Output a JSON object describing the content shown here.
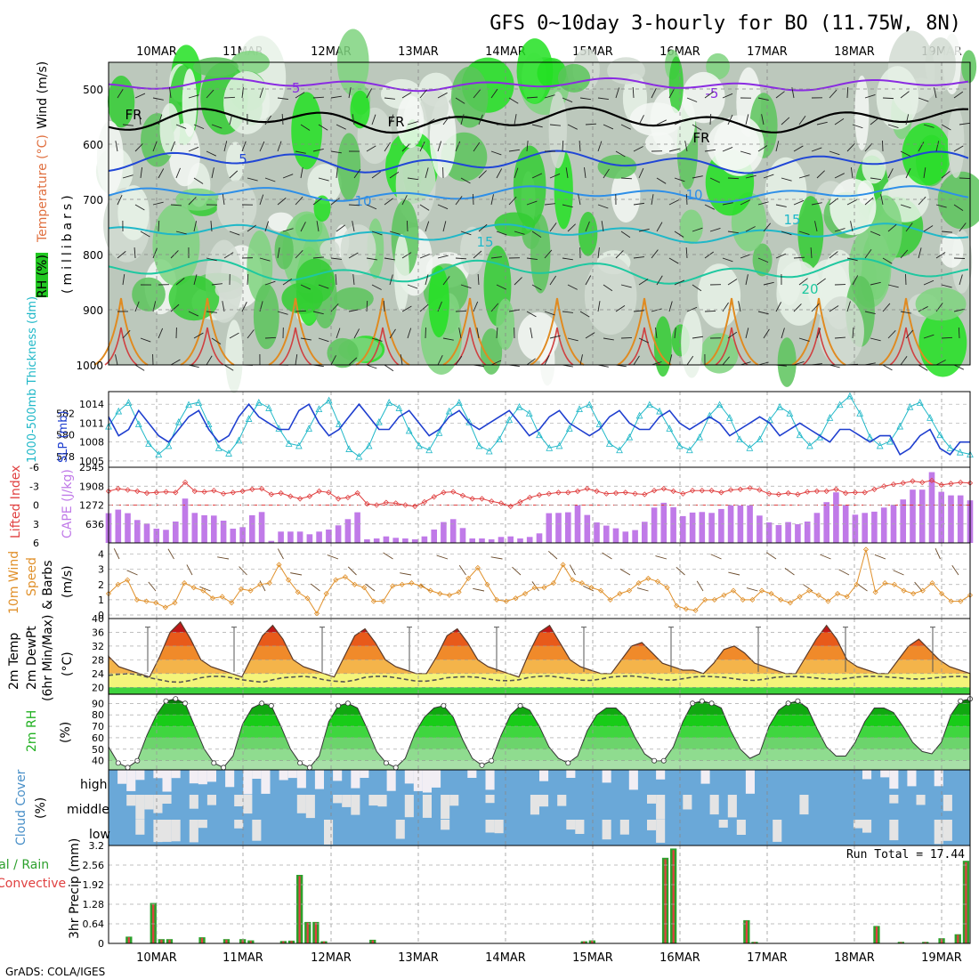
{
  "title": "GFS 0~10day 3-hourly for BO (11.75W, 8N)",
  "credit": "GrADS: COLA/IGES",
  "run_total_label": "Run Total = 17.44",
  "dates": [
    "10MAR",
    "11MAR",
    "12MAR",
    "13MAR",
    "14MAR",
    "15MAR",
    "16MAR",
    "17MAR",
    "18MAR",
    "19MAR"
  ],
  "panels": {
    "upper": {
      "ylabels": {
        "rh": "RH (%)",
        "temp": "Temperature (°C)",
        "wind": "Wind (m/s)",
        "units": "(millibars)"
      },
      "yticks": [
        "500",
        "600",
        "700",
        "800",
        "900",
        "1000"
      ],
      "contour_labels": [
        "-5",
        "FR",
        "5",
        "10",
        "15",
        "20"
      ]
    },
    "slp": {
      "ylabel_left": "1000-500mb Thickness (dm)",
      "ylabel_right": "SLP (mb)",
      "yticks_left": [
        "582",
        "580",
        "578"
      ],
      "yticks_right": [
        "1014",
        "1011",
        "1008",
        "1005"
      ]
    },
    "cape": {
      "ylabel_left": "Lifted Index",
      "ylabel_right": "CAPE (J/kg)",
      "yticks_left": [
        "-6",
        "-3",
        "0",
        "3",
        "6"
      ],
      "yticks_right": [
        "2545",
        "1908",
        "1272",
        "636"
      ]
    },
    "wind": {
      "ylabel_a": "10m Wind",
      "ylabel_b": "Speed",
      "ylabel_c": "& Barbs",
      "units": "(m/s)",
      "yticks": [
        "4",
        "3",
        "2",
        "1",
        "0"
      ]
    },
    "temp": {
      "ylabel_a": "2m Temp",
      "ylabel_b": "2m DewPt",
      "ylabel_c": "(6hr Min/Max)",
      "units": "(°C)",
      "yticks": [
        "40",
        "36",
        "32",
        "28",
        "24",
        "20"
      ]
    },
    "rh": {
      "ylabel": "2m RH",
      "units": "(%)",
      "yticks": [
        "90",
        "80",
        "70",
        "60",
        "50",
        "40"
      ]
    },
    "cloud": {
      "ylabel": "Cloud Cover",
      "units": "(%)",
      "levels": [
        "high",
        "middle",
        "low"
      ]
    },
    "precip": {
      "ylabel": "3hr Precip (mm)",
      "legend_total": "Total / Rain",
      "legend_conv": "Convective",
      "yticks": [
        "3.2",
        "2.56",
        "1.92",
        "1.28",
        "0.64",
        "0"
      ]
    }
  },
  "chart_data": [
    {
      "type": "line",
      "title": "1000-500mb Thickness / SLP",
      "series": [
        {
          "name": "SLP (mb)",
          "color": "#1f3fcf",
          "values": [
            1012,
            1009,
            1010,
            1013,
            1011,
            1009,
            1008,
            1010,
            1012,
            1013,
            1010,
            1008,
            1009,
            1012,
            1014,
            1012,
            1011,
            1010,
            1010,
            1013,
            1014,
            1011,
            1009,
            1010,
            1012,
            1014,
            1012,
            1010,
            1010,
            1012,
            1013,
            1011,
            1009,
            1010,
            1012,
            1013,
            1011,
            1010,
            1011,
            1012,
            1013,
            1011,
            1009,
            1010,
            1012,
            1013,
            1011,
            1010,
            1009,
            1010,
            1012,
            1013,
            1011,
            1010,
            1010,
            1012,
            1013,
            1011,
            1010,
            1011,
            1012,
            1011,
            1009,
            1010,
            1011,
            1012,
            1011,
            1009,
            1010,
            1011,
            1010,
            1009,
            1008,
            1010,
            1010,
            1009,
            1008,
            1009,
            1009,
            1006,
            1007,
            1009,
            1010,
            1007,
            1006,
            1008,
            1008
          ]
        },
        {
          "name": "1000-500mb Thickness (dm)",
          "color": "#20b8c8",
          "values": [
            580.8,
            582.2,
            583.0,
            581.0,
            579.2,
            578.2,
            579.0,
            581.2,
            582.8,
            583.0,
            581.0,
            578.8,
            578.3,
            579.5,
            581.5,
            583.0,
            582.5,
            580.6,
            579.2,
            579.0,
            580.6,
            582.4,
            583.2,
            581.0,
            578.7,
            578.0,
            579.0,
            581.2,
            583.0,
            582.5,
            580.4,
            579.0,
            578.6,
            580.2,
            582.2,
            583.0,
            581.2,
            579.0,
            578.5,
            579.6,
            581.4,
            582.6,
            582.0,
            580.0,
            578.8,
            579.0,
            580.6,
            582.4,
            582.8,
            581.0,
            579.2,
            578.6,
            579.8,
            581.8,
            582.8,
            582.2,
            580.6,
            579.0,
            578.6,
            579.8,
            581.8,
            582.8,
            581.6,
            579.6,
            578.8,
            579.6,
            581.4,
            582.6,
            582.0,
            580.0,
            579.0,
            579.8,
            581.6,
            582.8,
            583.6,
            582.0,
            579.8,
            579.0,
            579.4,
            580.8,
            582.6,
            583.0,
            581.6,
            580.0,
            578.8,
            578.4,
            578.2
          ]
        }
      ]
    },
    {
      "type": "bar",
      "title": "Lifted Index / CAPE",
      "series": [
        {
          "name": "CAPE (J/kg)",
          "color": "#c07ae8",
          "values": [
            1000,
            1120,
            1000,
            770,
            650,
            480,
            440,
            720,
            1490,
            1010,
            930,
            920,
            750,
            480,
            530,
            930,
            1040,
            70,
            380,
            380,
            380,
            290,
            380,
            450,
            590,
            800,
            1030,
            120,
            150,
            220,
            170,
            150,
            120,
            220,
            450,
            700,
            800,
            500,
            150,
            150,
            120,
            200,
            220,
            150,
            200,
            320,
            1000,
            1010,
            1030,
            1260,
            940,
            690,
            580,
            490,
            380,
            430,
            710,
            1190,
            1350,
            1200,
            900,
            1020,
            1040,
            1010,
            1140,
            1260,
            1260,
            1260,
            920,
            690,
            600,
            700,
            630,
            720,
            1010,
            1370,
            1700,
            1260,
            950,
            1010,
            1050,
            1190,
            1280,
            1460,
            1790,
            1790,
            2380,
            1720,
            1600,
            1600,
            1430
          ]
        },
        {
          "name": "Lifted Index",
          "color": "#e04040",
          "values": [
            -2.2,
            -2.6,
            -2.4,
            -2.2,
            -1.9,
            -2.0,
            -2.1,
            -2.0,
            -3.6,
            -2.2,
            -2.1,
            -2.3,
            -1.8,
            -2.0,
            -2.2,
            -2.5,
            -2.6,
            -1.7,
            -1.9,
            -1.4,
            -1.0,
            -1.4,
            -2.2,
            -2.0,
            -1.0,
            -1.2,
            -1.9,
            -0.2,
            0.0,
            -0.4,
            -0.3,
            0.0,
            0.2,
            -0.5,
            -1.3,
            -2.0,
            -2.1,
            -1.5,
            -1.0,
            -1.0,
            -0.6,
            -0.3,
            0.2,
            -0.5,
            -1.2,
            -1.6,
            -1.8,
            -2.0,
            -2.0,
            -2.2,
            -2.6,
            -2.2,
            -1.8,
            -1.9,
            -2.0,
            -1.8,
            -1.7,
            -2.3,
            -2.6,
            -2.2,
            -1.8,
            -2.3,
            -2.3,
            -2.3,
            -2.0,
            -2.4,
            -2.5,
            -2.7,
            -2.4,
            -1.8,
            -1.7,
            -1.9,
            -1.7,
            -2.1,
            -2.2,
            -2.2,
            -2.5,
            -1.9,
            -2.0,
            -2.0,
            -2.5,
            -3.0,
            -3.3,
            -3.5,
            -3.8,
            -3.6,
            -3.9,
            -3.2,
            -3.4,
            -3.6,
            -3.5
          ]
        }
      ]
    },
    {
      "type": "line",
      "title": "10m Wind Speed",
      "ylim": [
        0,
        4.5
      ],
      "series": [
        {
          "name": "10m Wind Speed",
          "color": "#e0902a",
          "values": [
            1.4,
            2.0,
            2.3,
            1.0,
            0.9,
            0.8,
            0.5,
            0.8,
            2.1,
            1.8,
            1.6,
            1.1,
            1.2,
            0.8,
            1.7,
            1.6,
            2.0,
            2.1,
            3.3,
            2.3,
            1.5,
            1.1,
            0.1,
            1.4,
            2.3,
            2.5,
            2.0,
            1.8,
            0.9,
            0.9,
            1.9,
            2.0,
            2.1,
            1.9,
            1.6,
            1.4,
            1.3,
            1.5,
            2.4,
            3.1,
            2.0,
            1.0,
            0.9,
            1.1,
            1.4,
            1.8,
            1.8,
            2.1,
            3.3,
            2.3,
            2.1,
            1.8,
            1.6,
            1.0,
            1.4,
            1.6,
            2.1,
            2.4,
            2.2,
            1.8,
            0.6,
            0.4,
            0.3,
            1.0,
            1.0,
            1.3,
            1.6,
            1.0,
            1.0,
            1.6,
            1.4,
            1.0,
            0.8,
            1.2,
            1.6,
            1.3,
            0.9,
            1.4,
            1.2,
            2.0,
            4.3,
            1.5,
            2.1,
            2.0,
            1.6,
            1.4,
            1.6,
            2.1,
            1.4,
            0.9,
            0.9,
            1.3
          ]
        }
      ]
    },
    {
      "type": "area",
      "title": "2m Temp / DewPt",
      "ylim": [
        18,
        40
      ],
      "series": [
        {
          "name": "2m Temp",
          "color": "#e04020",
          "values": [
            29,
            26,
            25,
            24,
            23,
            29,
            36,
            39,
            34,
            28,
            26,
            25,
            24,
            23,
            29,
            35,
            38,
            34,
            28,
            26,
            25,
            24,
            23,
            29,
            35,
            37,
            33,
            28,
            26,
            25,
            24,
            24,
            29,
            35,
            37,
            33,
            28,
            26,
            25,
            24,
            23,
            30,
            36,
            38,
            33,
            28,
            26,
            25,
            24,
            24,
            28,
            32,
            33,
            30,
            27,
            26,
            25,
            25,
            24,
            27,
            31,
            32,
            30,
            27,
            26,
            25,
            24,
            24,
            29,
            34,
            38,
            34,
            28,
            26,
            25,
            24,
            24,
            28,
            32,
            34,
            31,
            28,
            26,
            25,
            24
          ]
        },
        {
          "name": "2m DewPt",
          "color": "#555555",
          "values": [
            23.5,
            23.8,
            24.0,
            23.6,
            22.8,
            22.2,
            21.6,
            21.5,
            22.0,
            22.8,
            23.2,
            23.2,
            22.8,
            22.2,
            21.8,
            21.5,
            22.2,
            22.8,
            23.0,
            23.2,
            22.9,
            22.2,
            21.8,
            21.6,
            22.1,
            22.9,
            23.2,
            23.2,
            22.8,
            22.3,
            21.8,
            21.8,
            22.2,
            22.8,
            23.0,
            23.1,
            22.9,
            22.4,
            22.0,
            21.9,
            22.2,
            22.9,
            23.2,
            23.3,
            22.9,
            22.5,
            22.1,
            22.0,
            22.4,
            23.0,
            23.2,
            23.3,
            23.0,
            22.6,
            22.2,
            22.1,
            22.5,
            23.0,
            23.2,
            23.1,
            22.9,
            22.5,
            22.1,
            22.0,
            22.4,
            22.9,
            23.1,
            23.2,
            23.0,
            22.7,
            22.4,
            22.3,
            22.6,
            23.0,
            23.2,
            23.2,
            23.0,
            22.8,
            22.5,
            22.4,
            22.6,
            22.9,
            23.1,
            23.2,
            22.9
          ]
        }
      ]
    },
    {
      "type": "area",
      "title": "2m RH",
      "ylim": [
        32,
        98
      ],
      "series": [
        {
          "name": "2m RH",
          "color": "#20b020",
          "values": [
            52,
            38,
            34,
            40,
            62,
            80,
            92,
            94,
            90,
            70,
            50,
            38,
            34,
            44,
            72,
            86,
            90,
            88,
            70,
            50,
            38,
            34,
            44,
            74,
            88,
            90,
            86,
            68,
            48,
            38,
            34,
            42,
            64,
            78,
            86,
            88,
            78,
            58,
            42,
            36,
            40,
            62,
            80,
            88,
            84,
            70,
            52,
            42,
            38,
            44,
            66,
            80,
            86,
            86,
            78,
            60,
            46,
            40,
            40,
            52,
            74,
            90,
            92,
            90,
            86,
            66,
            50,
            42,
            46,
            70,
            84,
            90,
            92,
            86,
            68,
            52,
            44,
            44,
            56,
            74,
            86,
            86,
            82,
            70,
            56,
            48,
            46,
            56,
            80,
            92,
            94
          ]
        }
      ]
    },
    {
      "type": "bar",
      "title": "3hr Precip",
      "ylim": [
        0,
        3.2
      ],
      "series": [
        {
          "name": "Total / Rain",
          "color": "#2ca02c",
          "values": [
            0,
            0,
            0.22,
            0,
            0,
            1.32,
            0.14,
            0.14,
            0,
            0,
            0,
            0.2,
            0,
            0,
            0.14,
            0,
            0.14,
            0.1,
            0,
            0,
            0,
            0.08,
            0.09,
            2.24,
            0.7,
            0.7,
            0.07,
            0,
            0,
            0,
            0,
            0,
            0.12,
            0,
            0,
            0,
            0,
            0,
            0,
            0,
            0,
            0,
            0,
            0,
            0,
            0,
            0,
            0,
            0,
            0,
            0,
            0,
            0,
            0,
            0,
            0,
            0,
            0,
            0.07,
            0.1,
            0,
            0,
            0,
            0,
            0,
            0,
            0,
            0,
            2.8,
            3.1,
            0,
            0,
            0,
            0,
            0,
            0,
            0,
            0,
            0.76,
            0.05,
            0,
            0,
            0,
            0,
            0,
            0,
            0,
            0,
            0,
            0,
            0,
            0,
            0,
            0,
            0.57,
            0,
            0,
            0.05,
            0,
            0,
            0.05,
            0,
            0.17,
            0,
            0.3,
            2.7
          ]
        },
        {
          "name": "Convective",
          "color": "#e04040",
          "values": [
            0,
            0,
            0.2,
            0,
            0,
            1.28,
            0.12,
            0.12,
            0,
            0,
            0,
            0.18,
            0,
            0,
            0.12,
            0,
            0.12,
            0.08,
            0,
            0,
            0,
            0.07,
            0.08,
            2.2,
            0.68,
            0.68,
            0.06,
            0,
            0,
            0,
            0,
            0,
            0.1,
            0,
            0,
            0,
            0,
            0,
            0,
            0,
            0,
            0,
            0,
            0,
            0,
            0,
            0,
            0,
            0,
            0,
            0,
            0,
            0,
            0,
            0,
            0,
            0,
            0,
            0.06,
            0.09,
            0,
            0,
            0,
            0,
            0,
            0,
            0,
            0,
            2.75,
            3.05,
            0,
            0,
            0,
            0,
            0,
            0,
            0,
            0,
            0.74,
            0.04,
            0,
            0,
            0,
            0,
            0,
            0,
            0,
            0,
            0,
            0,
            0,
            0,
            0,
            0,
            0.55,
            0,
            0,
            0.04,
            0,
            0,
            0.04,
            0,
            0.15,
            0,
            0.28,
            2.65
          ]
        }
      ]
    }
  ]
}
